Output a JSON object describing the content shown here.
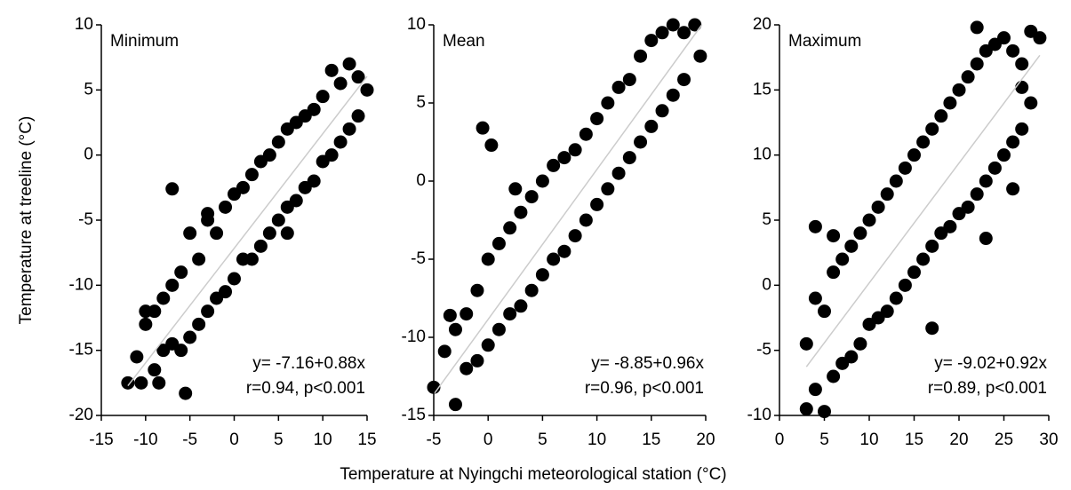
{
  "chart_data": [
    {
      "type": "scatter",
      "title": "Minimum",
      "color": "#000000",
      "fit_color": "#cccccc",
      "ylabel": "Temperature at treeline (°C)",
      "annotations": [
        "y= -7.16+0.88x",
        "r=0.94, p<0.001"
      ],
      "xlim": [
        -15,
        15
      ],
      "ylim": [
        -20,
        10
      ],
      "xticks": [
        -15,
        -10,
        -5,
        0,
        5,
        10,
        15
      ],
      "yticks": [
        -20,
        -15,
        -10,
        -5,
        0,
        5,
        10
      ],
      "x": [
        -12,
        -11,
        -10.5,
        -10,
        -9,
        -9,
        -8,
        -8,
        -7,
        -7,
        -6,
        -6,
        -5,
        -5,
        -4,
        -4,
        -3,
        -3,
        -2,
        -2,
        -1,
        -1,
        0,
        0,
        1,
        1,
        2,
        2,
        3,
        3,
        4,
        4,
        5,
        5,
        6,
        6,
        7,
        7,
        8,
        8,
        9,
        9,
        10,
        10,
        11,
        11,
        12,
        12,
        13,
        13,
        14,
        14,
        15,
        -7,
        -5.5,
        -8.5,
        -10,
        -3,
        6
      ],
      "values": [
        -17.5,
        -15.5,
        -17.5,
        -13,
        -12,
        -16.5,
        -11,
        -15,
        -10,
        -14.5,
        -9,
        -15,
        -6,
        -14,
        -8,
        -13,
        -5,
        -12,
        -6,
        -11,
        -4,
        -10.5,
        -3,
        -9.5,
        -2.5,
        -8,
        -1.5,
        -8,
        -0.5,
        -7,
        0,
        -6,
        1,
        -5,
        2,
        -4,
        2.5,
        -3.5,
        3,
        -2.5,
        3.5,
        -2,
        4.5,
        -0.5,
        6.5,
        0,
        5.5,
        1,
        7,
        2,
        6,
        3,
        5,
        -2.6,
        -18.3,
        -17.5,
        -12,
        -4.5,
        -6
      ],
      "fit_line": {
        "x": [
          -12,
          15
        ],
        "y": [
          -17.72,
          6.04
        ]
      }
    },
    {
      "type": "scatter",
      "title": "Mean",
      "color": "#000000",
      "fit_color": "#cccccc",
      "xlabel": "Temperature at Nyingchi meteorological station (°C)",
      "annotations": [
        "y= -8.85+0.96x",
        "r=0.96, p<0.001"
      ],
      "xlim": [
        -5,
        20
      ],
      "ylim": [
        -15,
        10
      ],
      "xticks": [
        -5,
        0,
        5,
        10,
        15,
        20
      ],
      "yticks": [
        -15,
        -10,
        -5,
        0,
        5,
        10
      ],
      "x": [
        -5,
        -4,
        -3,
        -3,
        -2,
        -2,
        -1,
        -1,
        0,
        0,
        1,
        1,
        2,
        2,
        3,
        3,
        4,
        4,
        5,
        5,
        6,
        6,
        7,
        7,
        8,
        8,
        9,
        9,
        10,
        10,
        11,
        11,
        12,
        12,
        13,
        13,
        14,
        14,
        15,
        15,
        16,
        16,
        17,
        17,
        18,
        18,
        19,
        19.5,
        -0.5,
        0.3,
        2.5,
        -3.5
      ],
      "values": [
        -13.2,
        -10.9,
        -14.3,
        -9.5,
        -8.5,
        -12,
        -7,
        -11.5,
        -5,
        -10.5,
        -4,
        -9.5,
        -3,
        -8.5,
        -2,
        -8,
        -1,
        -7,
        0,
        -6,
        1,
        -5,
        1.5,
        -4.5,
        2,
        -3.5,
        3,
        -2.5,
        4,
        -1.5,
        5,
        -0.5,
        6,
        0.5,
        6.5,
        1.5,
        8,
        2.5,
        9,
        3.5,
        9.5,
        4.5,
        10,
        5.5,
        9.5,
        6.5,
        10,
        8,
        3.4,
        2.3,
        -0.5,
        -8.6
      ],
      "fit_line": {
        "x": [
          -5,
          19.64
        ],
        "y": [
          -13.65,
          10
        ]
      }
    },
    {
      "type": "scatter",
      "title": "Maximum",
      "color": "#000000",
      "fit_color": "#cccccc",
      "annotations": [
        "y= -9.02+0.92x",
        "r=0.89, p<0.001"
      ],
      "xlim": [
        0,
        30
      ],
      "ylim": [
        -10,
        20
      ],
      "xticks": [
        0,
        5,
        10,
        15,
        20,
        25,
        30
      ],
      "yticks": [
        -10,
        -5,
        0,
        5,
        10,
        15,
        20
      ],
      "x": [
        3,
        3,
        4,
        4,
        5,
        5,
        6,
        6,
        7,
        7,
        8,
        8,
        9,
        9,
        10,
        10,
        11,
        11,
        12,
        12,
        13,
        13,
        14,
        14,
        15,
        15,
        16,
        16,
        17,
        17,
        18,
        18,
        19,
        19,
        20,
        20,
        21,
        21,
        22,
        22,
        23,
        23,
        24,
        24,
        25,
        25,
        26,
        26,
        27,
        27,
        28,
        28,
        29,
        22,
        4,
        6,
        17,
        23,
        26,
        27
      ],
      "values": [
        -4.5,
        -9.5,
        -1,
        -8,
        -2,
        -9.7,
        1,
        -7,
        2,
        -6,
        3,
        -5.5,
        4,
        -4.5,
        5,
        -3,
        6,
        -2.5,
        7,
        -2,
        8,
        -1,
        9,
        0,
        10,
        1,
        11,
        2,
        12,
        3,
        13,
        4,
        14,
        4.5,
        15,
        5.5,
        16,
        6,
        17,
        7,
        18,
        8,
        18.5,
        9,
        19,
        10,
        18,
        11,
        17,
        12,
        19.5,
        14,
        19,
        19.8,
        4.5,
        3.8,
        -3.3,
        3.6,
        7.4,
        15.2
      ],
      "fit_line": {
        "x": [
          3,
          29
        ],
        "y": [
          -6.26,
          17.66
        ]
      }
    }
  ]
}
